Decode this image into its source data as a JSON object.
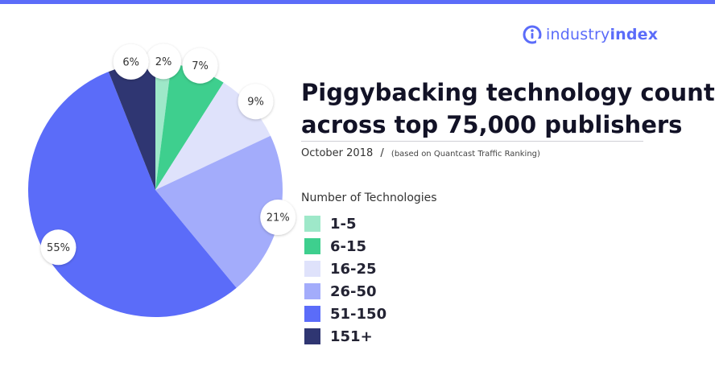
{
  "brand": {
    "name_regular": "industry",
    "name_bold": "index",
    "accent": "#5b6cf9"
  },
  "header": {
    "title_line1": "Piggybacking technology count",
    "title_line2": "across top 75,000 publishers",
    "date": "October 2018",
    "separator": "/",
    "note": "(based on Quantcast Traffic Ranking)"
  },
  "legend": {
    "title": "Number of Technologies",
    "items": [
      "1-5",
      "6-15",
      "16-25",
      "26-50",
      "51-150",
      "151+"
    ]
  },
  "chart_data": {
    "type": "pie",
    "title": "Piggybacking technology count across top 75,000 publishers",
    "categories": [
      "1-5",
      "6-15",
      "16-25",
      "26-50",
      "51-150",
      "151+"
    ],
    "values": [
      2,
      7,
      9,
      21,
      55,
      6
    ],
    "labels": [
      "2%",
      "7%",
      "9%",
      "21%",
      "55%",
      "6%"
    ],
    "colors": [
      "#9ee8c9",
      "#3ecf8e",
      "#dfe2fb",
      "#a3acfb",
      "#5b6cf9",
      "#2f3672"
    ],
    "legend_position": "right",
    "start": "top",
    "direction": "clockwise"
  }
}
